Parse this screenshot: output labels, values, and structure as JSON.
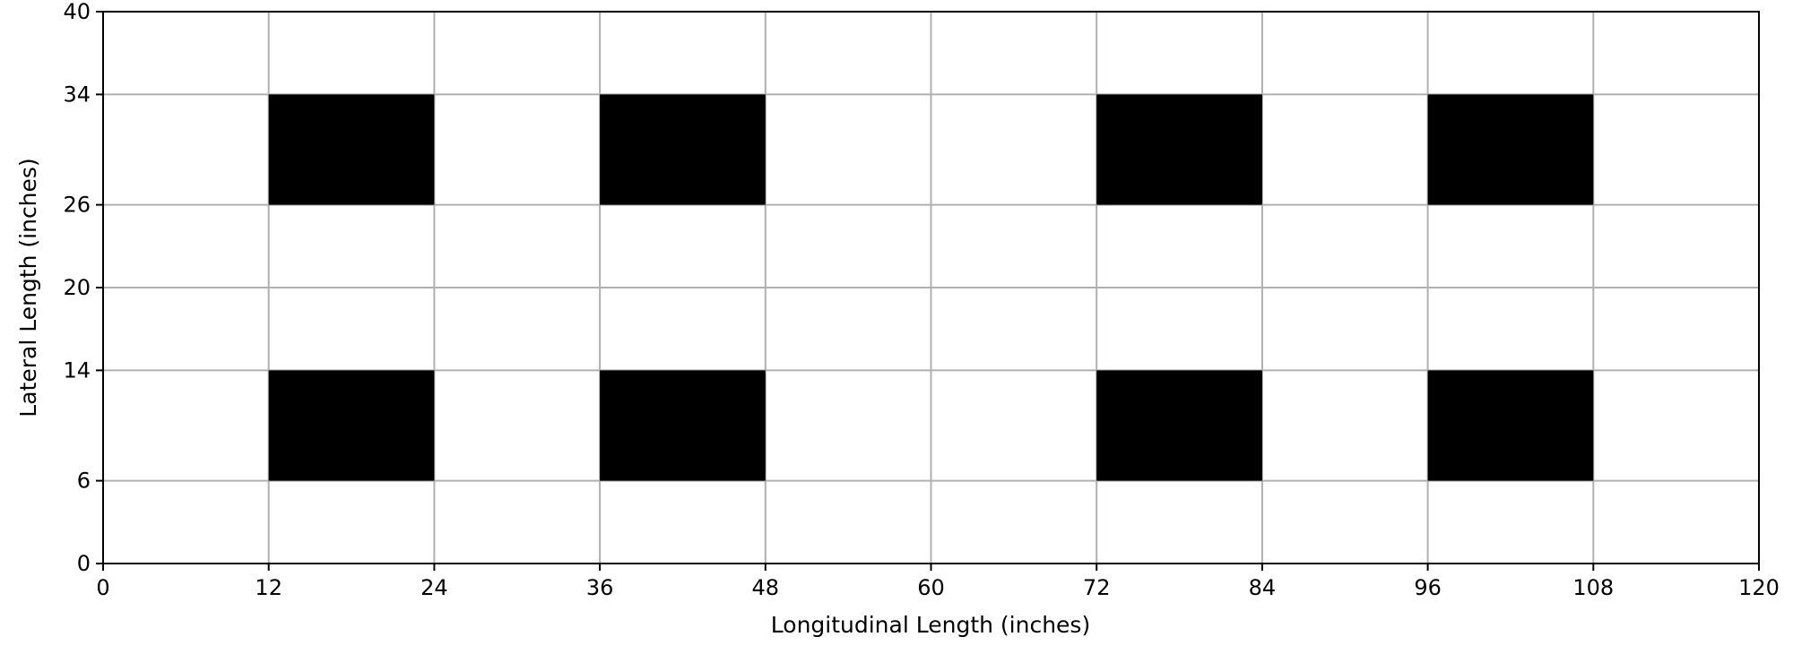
{
  "chart_data": {
    "type": "heatmap",
    "title": "",
    "xlabel": "Longitudinal Length (inches)",
    "ylabel": "Lateral Length (inches)",
    "xlim": [
      0,
      120
    ],
    "ylim": [
      0,
      40
    ],
    "xticks": [
      0,
      12,
      24,
      36,
      48,
      60,
      72,
      84,
      96,
      108,
      120
    ],
    "yticks": [
      0,
      6,
      14,
      20,
      26,
      34,
      40
    ],
    "xtick_labels": [
      "0",
      "12",
      "24",
      "36",
      "48",
      "60",
      "72",
      "84",
      "96",
      "108",
      "120"
    ],
    "ytick_labels": [
      "0",
      "6",
      "14",
      "20",
      "26",
      "34",
      "40"
    ],
    "grid": true,
    "rectangles": [
      {
        "x": [
          12,
          24
        ],
        "y": [
          26,
          34
        ]
      },
      {
        "x": [
          36,
          48
        ],
        "y": [
          26,
          34
        ]
      },
      {
        "x": [
          72,
          84
        ],
        "y": [
          26,
          34
        ]
      },
      {
        "x": [
          96,
          108
        ],
        "y": [
          26,
          34
        ]
      },
      {
        "x": [
          12,
          24
        ],
        "y": [
          6,
          14
        ]
      },
      {
        "x": [
          36,
          48
        ],
        "y": [
          6,
          14
        ]
      },
      {
        "x": [
          72,
          84
        ],
        "y": [
          6,
          14
        ]
      },
      {
        "x": [
          96,
          108
        ],
        "y": [
          6,
          14
        ]
      }
    ],
    "fill_color": "#000000",
    "background_color": "#ffffff",
    "grid_color": "#b0b0b0"
  }
}
